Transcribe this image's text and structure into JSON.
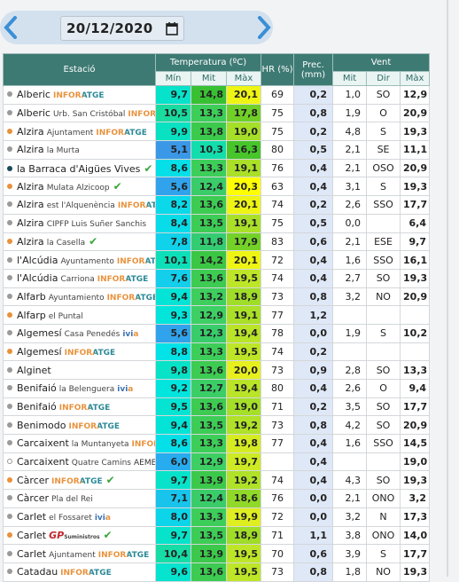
{
  "date": "20/12/2020",
  "table": {
    "headers": {
      "station": "Estació",
      "temperature": "Temperatura (ºC)",
      "hr": "HR (%)",
      "prec": "Prec. (mm)",
      "wind": "Vent",
      "temp_sub": [
        "Mín",
        "Mit",
        "Màx"
      ],
      "wind_sub": [
        "Mit",
        "Dir",
        "Màx"
      ]
    },
    "rows": [
      {
        "name": "Alberic",
        "network": "INFORATGE",
        "dot": "#9a9a9a",
        "values": [
          "9,7",
          "14,8",
          "20,1",
          "69",
          "0,2",
          "1,0",
          "SO",
          "12,9"
        ]
      },
      {
        "name": "Alberic",
        "place": "Urb. San Cristóbal",
        "network": "INFORATGE",
        "dot": "#9a9a9a",
        "values": [
          "10,5",
          "13,3",
          "17,8",
          "75",
          "0,8",
          "1,9",
          "O",
          "20,9"
        ]
      },
      {
        "name": "Alzira",
        "place": "Ajuntament",
        "network": "INFORATGE",
        "dot": "#e8913a",
        "values": [
          "9,9",
          "13,8",
          "19,0",
          "75",
          "0,2",
          "4,8",
          "S",
          "19,3"
        ]
      },
      {
        "name": "Alzira",
        "place": "la Murta",
        "dot": "#9a9a9a",
        "values": [
          "5,1",
          "10,3",
          "16,3",
          "80",
          "0,5",
          "2,1",
          "SE",
          "11,1"
        ]
      },
      {
        "name": "la Barraca d'Aigües Vives",
        "check": "✔",
        "dot": "#1b4a5a",
        "values": [
          "8,6",
          "13,3",
          "19,1",
          "76",
          "0,4",
          "2,1",
          "OSO",
          "20,9"
        ]
      },
      {
        "name": "Alzira",
        "place": "Mulata Alzicoop",
        "check": "✔",
        "dot": "#e8913a",
        "values": [
          "5,6",
          "12,4",
          "20,3",
          "63",
          "0,4",
          "3,1",
          "S",
          "19,3"
        ]
      },
      {
        "name": "Alzira",
        "place": "est l'Alquenència",
        "network": "INFORATGE",
        "dot": "#9a9a9a",
        "values": [
          "8,2",
          "13,6",
          "20,1",
          "74",
          "0,2",
          "2,6",
          "SSO",
          "17,7"
        ]
      },
      {
        "name": "Alzira",
        "place": "CIPFP Luis Suñer Sanchis",
        "dot": "#9a9a9a",
        "values": [
          "8,4",
          "13,5",
          "19,1",
          "75",
          "0,5",
          "0,0",
          null,
          "6,4"
        ]
      },
      {
        "name": "Alzira",
        "place": "la Casella",
        "check": "✔",
        "dot": "#e8913a",
        "values": [
          "7,8",
          "11,8",
          "17,9",
          "83",
          "0,6",
          "2,1",
          "ESE",
          "9,7"
        ]
      },
      {
        "name": "l'Alcúdia",
        "place": "Ayuntamento",
        "network": "INFORATGE",
        "dot": "#9a9a9a",
        "values": [
          "10,1",
          "14,2",
          "20,1",
          "72",
          "0,4",
          "1,6",
          "SSO",
          "16,1"
        ]
      },
      {
        "name": "l'Alcúdia",
        "place": "Carriona",
        "network": "INFORATGE",
        "dot": "#9a9a9a",
        "values": [
          "7,6",
          "13,6",
          "19,5",
          "74",
          "0,4",
          "2,7",
          "SO",
          "19,3"
        ]
      },
      {
        "name": "Alfarb",
        "place": "Ayuntamiento",
        "network": "INFORATGE",
        "dot": "#9a9a9a",
        "values": [
          "9,4",
          "13,2",
          "18,9",
          "73",
          "0,8",
          "3,2",
          "NO",
          "20,9"
        ]
      },
      {
        "name": "Alfarp",
        "place": "el Puntal",
        "dot": "#e8913a",
        "values": [
          "9,3",
          "12,9",
          "19,1",
          "77",
          "1,2",
          null,
          null,
          null
        ]
      },
      {
        "name": "Algemesí",
        "place": "Casa Penedés",
        "network": "ivia",
        "dot": "#9a9a9a",
        "values": [
          "5,6",
          "12,3",
          "19,4",
          "78",
          "0,0",
          "1,9",
          "S",
          "10,2"
        ]
      },
      {
        "name": "Algemesí",
        "network": "INFORATGE",
        "dot": "#e8913a",
        "values": [
          "8,8",
          "13,3",
          "19,5",
          "74",
          "0,2",
          null,
          null,
          null
        ]
      },
      {
        "name": "Alginet",
        "dot": "#9a9a9a",
        "values": [
          "9,8",
          "13,6",
          "20,0",
          "73",
          "0,9",
          "2,8",
          "SO",
          "13,3"
        ]
      },
      {
        "name": "Benifaió",
        "place": "la Belenguera",
        "network": "ivia",
        "dot": "#9a9a9a",
        "values": [
          "9,2",
          "12,7",
          "19,4",
          "80",
          "0,4",
          "2,6",
          "O",
          "9,4"
        ]
      },
      {
        "name": "Benifaió",
        "network": "INFORATGE",
        "dot": "#9a9a9a",
        "values": [
          "9,5",
          "13,6",
          "19,0",
          "71",
          "0,2",
          "3,5",
          "SO",
          "17,7"
        ]
      },
      {
        "name": "Benimodo",
        "network": "INFORATGE",
        "dot": "#9a9a9a",
        "values": [
          "9,4",
          "13,5",
          "19,2",
          "73",
          "0,8",
          "4,2",
          "SO",
          "20,9"
        ]
      },
      {
        "name": "Carcaixent",
        "place": "la Muntanyeta",
        "network": "INFORATGE",
        "dot": "#9a9a9a",
        "values": [
          "8,6",
          "13,3",
          "19,8",
          "77",
          "0,4",
          "1,6",
          "SSO",
          "14,5"
        ]
      },
      {
        "name": "Carcaixent",
        "place": "Quatre Camins",
        "network": "AEMET",
        "dot": "#ffffff",
        "values": [
          "6,0",
          "12,9",
          "19,7",
          null,
          "0,4",
          null,
          null,
          "19,0"
        ]
      },
      {
        "name": "Càrcer",
        "network": "INFORATGE",
        "check": "✔",
        "dot": "#e8913a",
        "values": [
          "9,7",
          "13,9",
          "19,2",
          "74",
          "0,4",
          "4,3",
          "SO",
          "19,3"
        ]
      },
      {
        "name": "Càrcer",
        "place": "Pla del Rei",
        "dot": "#9a9a9a",
        "values": [
          "7,1",
          "12,4",
          "18,6",
          "76",
          "0,0",
          "2,1",
          "ONO",
          "3,2"
        ]
      },
      {
        "name": "Carlet",
        "place": "el Fossaret",
        "network": "ivia",
        "dot": "#9a9a9a",
        "values": [
          "8,0",
          "13,3",
          "19,9",
          "72",
          "0,0",
          "3,2",
          "N",
          "17,3"
        ]
      },
      {
        "name": "Carlet",
        "network": "GP",
        "network_sub": "Suministros",
        "check": "✔",
        "dot": "#e8913a",
        "values": [
          "9,7",
          "13,5",
          "18,9",
          "71",
          "1,1",
          "3,8",
          "ONO",
          "14,0"
        ]
      },
      {
        "name": "Carlet",
        "place": "Ajuntament",
        "network": "INFORATGE",
        "dot": "#9a9a9a",
        "values": [
          "10,4",
          "13,9",
          "19,5",
          "70",
          "0,6",
          "3,9",
          "S",
          "17,7"
        ]
      },
      {
        "name": "Catadau",
        "network": "INFORATGE",
        "dot": "#9a9a9a",
        "values": [
          "9,6",
          "13,6",
          "19,5",
          "73",
          "0,8",
          "1,8",
          "NO",
          "19,3"
        ]
      }
    ]
  }
}
